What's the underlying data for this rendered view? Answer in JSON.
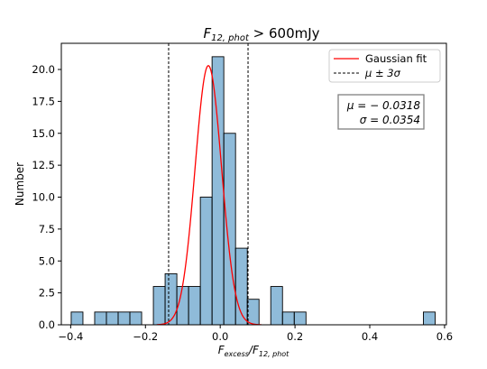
{
  "chart_data": {
    "type": "bar",
    "title_main": "F",
    "title_sub": "12, phot",
    "title_rest": " > 600mJy",
    "xlabel_main": "F",
    "xlabel_sub1": "excess",
    "xlabel_mid": "/F",
    "xlabel_sub2": "12, phot",
    "ylabel": "Number",
    "xlim": [
      -0.425,
      0.605
    ],
    "ylim": [
      0,
      22.05
    ],
    "xticks": [
      -0.4,
      -0.2,
      0.0,
      0.2,
      0.4,
      0.6
    ],
    "xtick_labels": [
      "−0.4",
      "−0.2",
      "0.0",
      "0.2",
      "0.4",
      "0.6"
    ],
    "yticks": [
      0,
      2.5,
      5,
      7.5,
      10,
      12.5,
      15,
      17.5,
      20
    ],
    "ytick_labels": [
      "0.0",
      "2.5",
      "5.0",
      "7.5",
      "10.0",
      "12.5",
      "15.0",
      "17.5",
      "20.0"
    ],
    "bin_edges": [
      -0.3986,
      -0.3672,
      -0.3358,
      -0.3044,
      -0.273,
      -0.2416,
      -0.2102,
      -0.1788,
      -0.1474,
      -0.116,
      -0.0846,
      -0.0532,
      -0.0218,
      0.0096,
      0.041,
      0.0724,
      0.1038,
      0.1352,
      0.1666,
      0.198,
      0.2294,
      0.2608,
      0.2922,
      0.3236,
      0.355,
      0.3864,
      0.4178,
      0.4492,
      0.4806,
      0.512,
      0.5434,
      0.5748
    ],
    "values": [
      1,
      0,
      1,
      1,
      1,
      1,
      0,
      3,
      4,
      3,
      3,
      10,
      21,
      15,
      6,
      2,
      0,
      3,
      1,
      1,
      0,
      0,
      0,
      0,
      0,
      0,
      0,
      0,
      0,
      0,
      1
    ],
    "bar_color": "#1f77b4",
    "bar_opacity": 0.5,
    "gaussian": {
      "mu": -0.0318,
      "sigma": 0.0354,
      "peak": 20.3,
      "color": "#ff0000"
    },
    "sigma_lines": [
      -0.138,
      0.0744
    ],
    "legend": {
      "position": "top-right",
      "gaussian_label": "Gaussian fit",
      "sigma_label": "μ ± 3σ"
    },
    "stats_box": {
      "line1": "μ = − 0.0318",
      "line2": "σ = 0.0354"
    }
  }
}
